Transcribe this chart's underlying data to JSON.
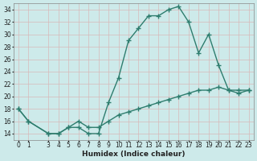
{
  "xlabel": "Humidex (Indice chaleur)",
  "line_color": "#2e7d6e",
  "bg_color": "#cdeaea",
  "grid_color": "#b8d8d8",
  "tick_color": "#222222",
  "ylim": [
    13,
    35
  ],
  "xlim": [
    -0.5,
    23.5
  ],
  "yticks": [
    14,
    16,
    18,
    20,
    22,
    24,
    26,
    28,
    30,
    32,
    34
  ],
  "xticks": [
    0,
    1,
    3,
    4,
    5,
    6,
    7,
    8,
    9,
    10,
    11,
    12,
    13,
    14,
    15,
    16,
    17,
    18,
    19,
    20,
    21,
    22,
    23
  ],
  "curve1_x": [
    0,
    1,
    3,
    4,
    5,
    6,
    7,
    8,
    9,
    10,
    11,
    12,
    13,
    14,
    15,
    16,
    17,
    18,
    19,
    20,
    21,
    22,
    23
  ],
  "curve1_y": [
    18,
    16,
    14,
    14,
    15,
    15,
    14,
    14,
    19,
    23,
    29,
    31,
    33,
    33,
    34,
    34.5,
    32,
    27,
    30,
    25,
    21,
    20.5,
    21
  ],
  "curve2_x": [
    0,
    1,
    3,
    4,
    5,
    6,
    7,
    8,
    9,
    10,
    11,
    12,
    13,
    14,
    15,
    16,
    17,
    18,
    19,
    20,
    21,
    22,
    23
  ],
  "curve2_y": [
    18,
    16,
    14,
    14,
    15,
    16,
    15,
    15,
    16,
    17,
    17.5,
    18,
    18.5,
    19,
    19.5,
    20,
    20.5,
    21,
    21,
    21.5,
    21,
    21,
    21
  ],
  "marker": "+",
  "markersize": 4,
  "linewidth": 1.0,
  "xlabel_fontsize": 6.5,
  "tick_fontsize": 5.5
}
